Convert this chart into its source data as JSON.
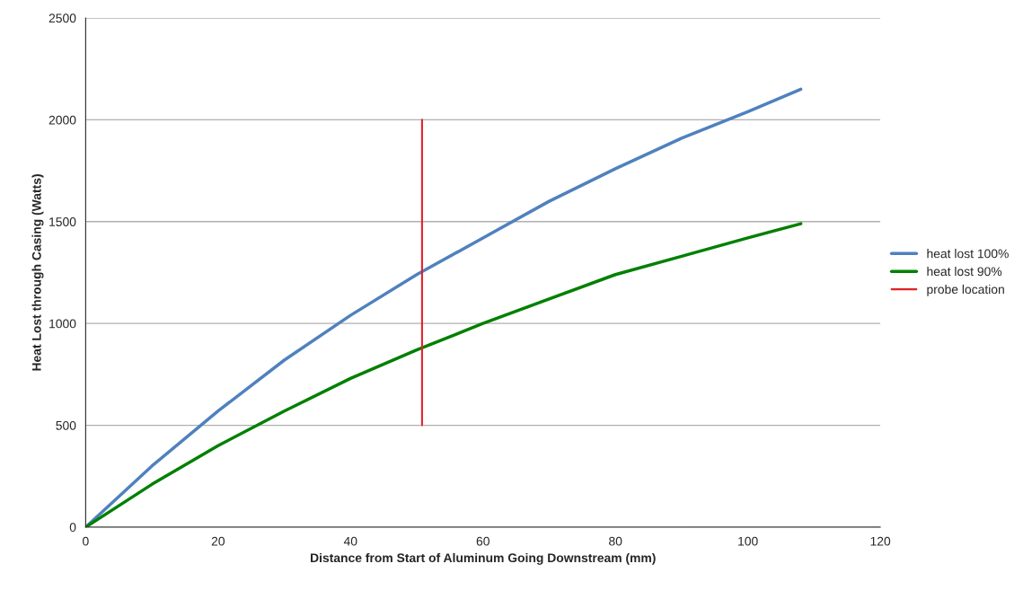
{
  "chart_data": {
    "type": "line",
    "xlabel": "Distance from Start of Aluminum Going Downstream (mm)",
    "ylabel": "Heat Lost through Casing (Watts)",
    "xlim": [
      0,
      120
    ],
    "xticks": [
      0,
      20,
      40,
      60,
      80,
      100,
      120
    ],
    "ylim": [
      0,
      2500
    ],
    "yticks": [
      0,
      500,
      1000,
      1500,
      2000,
      2500
    ],
    "grid": "y",
    "legend": "right",
    "marker": "none",
    "line_style": "solid",
    "series": [
      {
        "name": "heat lost 100%",
        "color": "#4f81bd",
        "x": [
          0,
          10,
          20,
          30,
          40,
          50,
          60,
          70,
          80,
          90,
          100,
          108
        ],
        "values": [
          0,
          300,
          570,
          820,
          1040,
          1240,
          1420,
          1600,
          1760,
          1910,
          2040,
          2150
        ]
      },
      {
        "name": "heat lost 90%",
        "color": "#008000",
        "x": [
          0,
          10,
          20,
          30,
          40,
          50,
          60,
          70,
          80,
          90,
          100,
          108
        ],
        "values": [
          0,
          210,
          400,
          570,
          730,
          870,
          1000,
          1120,
          1240,
          1330,
          1420,
          1490
        ]
      },
      {
        "name": "probe location",
        "color": "#e0202a",
        "x": [
          50.8,
          50.8
        ],
        "values": [
          500,
          2000
        ]
      }
    ]
  }
}
